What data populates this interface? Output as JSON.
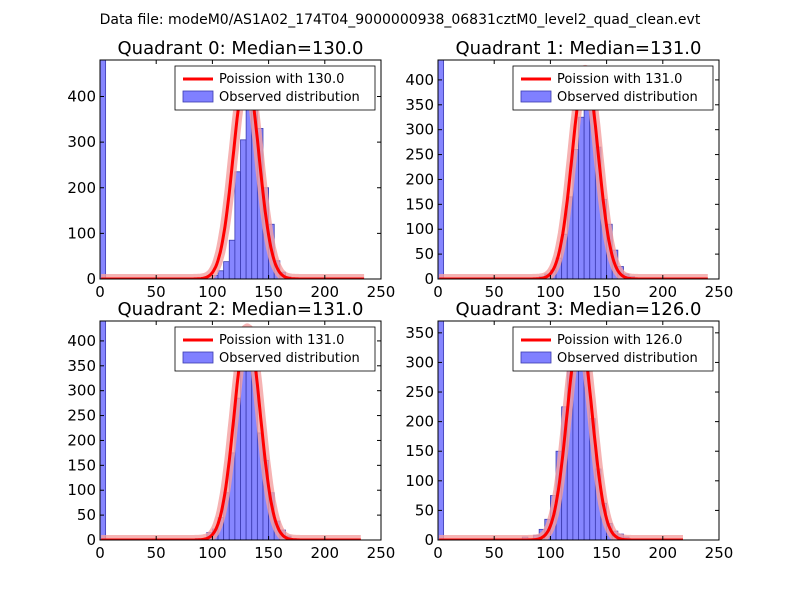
{
  "figure": {
    "suptitle": "Data file: modeM0/AS1A02_174T04_9000000938_06831cztM0_level2_quad_clean.evt"
  },
  "colors": {
    "bar_fill": "#8080ff",
    "bar_edge": "#3b3bb0",
    "poisson_line": "#ff0000",
    "poisson_band": "#f4a0a0"
  },
  "chart_data": [
    {
      "type": "bar",
      "title": "Quadrant 0: Median=130.0",
      "xlim": [
        0,
        250
      ],
      "ylim": [
        0,
        480
      ],
      "xticks": [
        0,
        50,
        100,
        150,
        200,
        250
      ],
      "yticks": [
        0,
        100,
        200,
        300,
        400
      ],
      "bin_width": 5,
      "median": 130.0,
      "legend": [
        "Poission with 130.0",
        "Observed distribution"
      ],
      "legend_position": "top-right",
      "bars": [
        [
          0,
          480
        ],
        [
          95,
          2
        ],
        [
          100,
          8
        ],
        [
          105,
          18
        ],
        [
          110,
          38
        ],
        [
          115,
          85
        ],
        [
          120,
          235
        ],
        [
          125,
          305
        ],
        [
          130,
          460
        ],
        [
          135,
          460
        ],
        [
          140,
          330
        ],
        [
          145,
          200
        ],
        [
          150,
          120
        ],
        [
          155,
          40
        ],
        [
          160,
          15
        ],
        [
          165,
          5
        ],
        [
          170,
          2
        ]
      ],
      "poisson_peak": 450,
      "poisson_xmax": 235
    },
    {
      "type": "bar",
      "title": "Quadrant 1: Median=131.0",
      "xlim": [
        0,
        250
      ],
      "ylim": [
        0,
        440
      ],
      "xticks": [
        0,
        50,
        100,
        150,
        200,
        250
      ],
      "yticks": [
        0,
        50,
        100,
        150,
        200,
        250,
        300,
        350,
        400
      ],
      "bin_width": 5,
      "median": 131.0,
      "legend": [
        "Poission with 131.0",
        "Observed distribution"
      ],
      "legend_position": "top-right",
      "bars": [
        [
          0,
          440
        ],
        [
          90,
          5
        ],
        [
          95,
          10
        ],
        [
          100,
          18
        ],
        [
          105,
          42
        ],
        [
          110,
          90
        ],
        [
          115,
          165
        ],
        [
          120,
          260
        ],
        [
          125,
          325
        ],
        [
          130,
          400
        ],
        [
          135,
          345
        ],
        [
          140,
          265
        ],
        [
          145,
          160
        ],
        [
          150,
          110
        ],
        [
          155,
          58
        ],
        [
          160,
          25
        ],
        [
          165,
          10
        ],
        [
          170,
          5
        ]
      ],
      "poisson_peak": 420,
      "poisson_xmax": 240
    },
    {
      "type": "bar",
      "title": "Quadrant 2: Median=131.0",
      "xlim": [
        0,
        250
      ],
      "ylim": [
        0,
        440
      ],
      "xticks": [
        0,
        50,
        100,
        150,
        200,
        250
      ],
      "yticks": [
        0,
        50,
        100,
        150,
        200,
        250,
        300,
        350,
        400
      ],
      "bin_width": 5,
      "median": 131.0,
      "legend": [
        "Poission with 131.0",
        "Observed distribution"
      ],
      "legend_position": "top-right",
      "bars": [
        [
          0,
          440
        ],
        [
          85,
          3
        ],
        [
          95,
          15
        ],
        [
          100,
          22
        ],
        [
          105,
          45
        ],
        [
          110,
          95
        ],
        [
          115,
          175
        ],
        [
          120,
          285
        ],
        [
          125,
          410
        ],
        [
          130,
          420
        ],
        [
          135,
          365
        ],
        [
          140,
          215
        ],
        [
          145,
          160
        ],
        [
          150,
          95
        ],
        [
          155,
          38
        ],
        [
          160,
          20
        ],
        [
          165,
          8
        ],
        [
          170,
          3
        ]
      ],
      "poisson_peak": 425,
      "poisson_xmax": 232
    },
    {
      "type": "bar",
      "title": "Quadrant 3: Median=126.0",
      "xlim": [
        0,
        250
      ],
      "ylim": [
        0,
        370
      ],
      "xticks": [
        0,
        50,
        100,
        150,
        200,
        250
      ],
      "yticks": [
        0,
        50,
        100,
        150,
        200,
        250,
        300,
        350
      ],
      "bin_width": 5,
      "median": 126.0,
      "legend": [
        "Poission with 126.0",
        "Observed distribution"
      ],
      "legend_position": "top-right",
      "bars": [
        [
          0,
          370
        ],
        [
          75,
          5
        ],
        [
          85,
          8
        ],
        [
          90,
          18
        ],
        [
          95,
          35
        ],
        [
          100,
          75
        ],
        [
          105,
          150
        ],
        [
          110,
          225
        ],
        [
          115,
          300
        ],
        [
          120,
          325
        ],
        [
          125,
          355
        ],
        [
          130,
          300
        ],
        [
          135,
          205
        ],
        [
          140,
          120
        ],
        [
          145,
          62
        ],
        [
          150,
          28
        ],
        [
          155,
          15
        ],
        [
          160,
          10
        ],
        [
          165,
          5
        ]
      ],
      "poisson_peak": 350,
      "poisson_xmax": 218
    }
  ]
}
